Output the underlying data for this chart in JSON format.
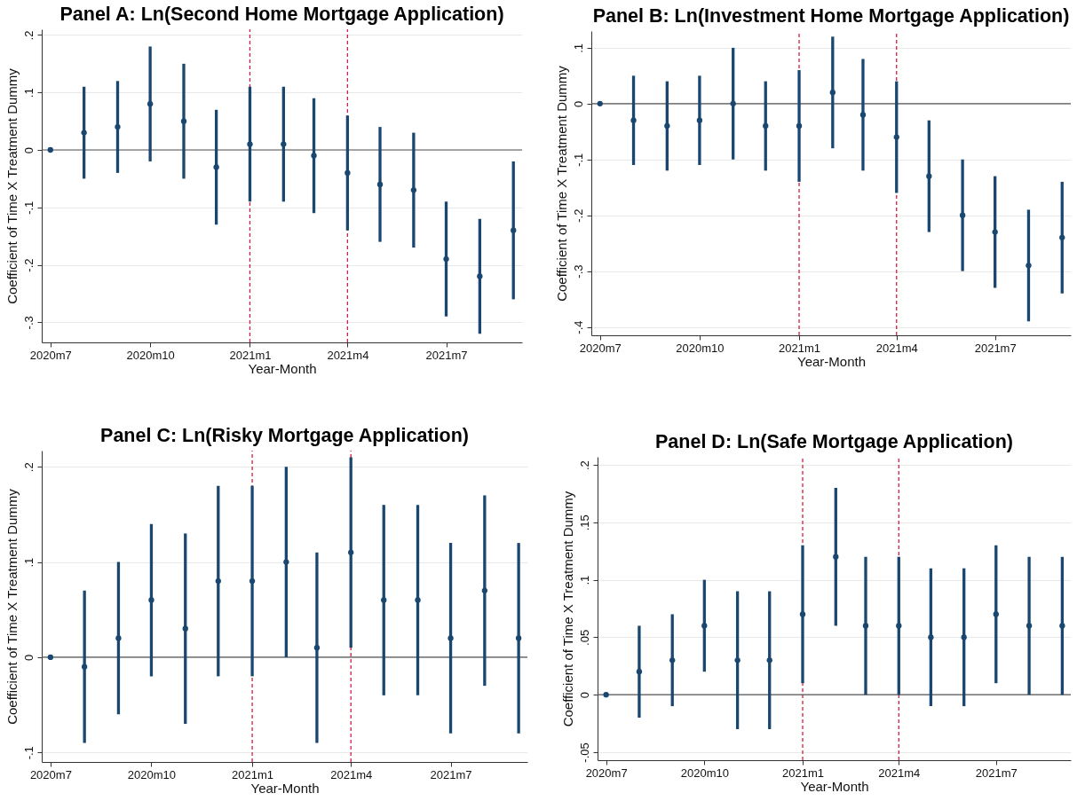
{
  "chart_data": [
    {
      "type": "scatter",
      "title": "Panel A: Ln(Second Home Mortgage Application)",
      "xlabel": "Year-Month",
      "ylabel": "Coefficient of Time X Treatment Dummy",
      "x": [
        "2020-07",
        "2020-08",
        "2020-09",
        "2020-10",
        "2020-11",
        "2020-12",
        "2021-01",
        "2021-02",
        "2021-03",
        "2021-04",
        "2021-05",
        "2021-06",
        "2021-07",
        "2021-08",
        "2021-09"
      ],
      "values": [
        0,
        0.03,
        0.04,
        0.08,
        0.05,
        -0.03,
        0.01,
        0.01,
        -0.01,
        -0.04,
        -0.06,
        -0.07,
        -0.19,
        -0.22,
        -0.14
      ],
      "errors": [
        null,
        0.08,
        0.08,
        0.1,
        0.1,
        0.1,
        0.1,
        0.1,
        0.1,
        0.1,
        0.1,
        0.1,
        0.1,
        0.1,
        0.12
      ],
      "color": "#1a476f",
      "marker": "circle",
      "grid": "y",
      "xlim": [
        "2020-06-23",
        "2021-09-09"
      ],
      "xticks": [
        {
          "value": "2020-07",
          "label": "2020m7"
        },
        {
          "value": "2020-10",
          "label": "2020m10"
        },
        {
          "value": "2021-01",
          "label": "2021m1"
        },
        {
          "value": "2021-04",
          "label": "2021m4"
        },
        {
          "value": "2021-07",
          "label": "2021m7"
        }
      ],
      "ylim": [
        -0.335,
        0.21
      ],
      "yticks": [
        {
          "value": -0.3,
          "label": "-.3"
        },
        {
          "value": -0.2,
          "label": "-.2"
        },
        {
          "value": -0.1,
          "label": "-.1"
        },
        {
          "value": 0,
          "label": "0"
        },
        {
          "value": 0.1,
          "label": ".1"
        },
        {
          "value": 0.2,
          "label": ".2"
        }
      ],
      "ref_lines": [
        {
          "axis": "y",
          "value": 0,
          "color": "#555555",
          "line_style": "solid"
        },
        {
          "axis": "x",
          "value": "2021-01",
          "color": "#d81b47",
          "line_style": "dashed"
        },
        {
          "axis": "x",
          "value": "2021-04",
          "color": "#d81b47",
          "line_style": "dashed"
        }
      ]
    },
    {
      "type": "scatter",
      "title": "Panel B: Ln(Investment Home Mortgage Application)",
      "xlabel": "Year-Month",
      "ylabel": "Coefficient of Time X Treatment Dummy",
      "x": [
        "2020-07",
        "2020-08",
        "2020-09",
        "2020-10",
        "2020-11",
        "2020-12",
        "2021-01",
        "2021-02",
        "2021-03",
        "2021-04",
        "2021-05",
        "2021-06",
        "2021-07",
        "2021-08",
        "2021-09"
      ],
      "values": [
        0,
        -0.03,
        -0.04,
        -0.03,
        0,
        -0.04,
        -0.04,
        0.02,
        -0.02,
        -0.06,
        -0.13,
        -0.2,
        -0.23,
        -0.29,
        -0.24
      ],
      "errors": [
        null,
        0.08,
        0.08,
        0.08,
        0.1,
        0.08,
        0.1,
        0.1,
        0.1,
        0.1,
        0.1,
        0.1,
        0.1,
        0.1,
        0.1
      ],
      "color": "#1a476f",
      "marker": "circle",
      "grid": "y",
      "xlim": [
        "2020-06-23",
        "2021-09-09"
      ],
      "xticks": [
        {
          "value": "2020-07",
          "label": "2020m7"
        },
        {
          "value": "2020-10",
          "label": "2020m10"
        },
        {
          "value": "2021-01",
          "label": "2021m1"
        },
        {
          "value": "2021-04",
          "label": "2021m4"
        },
        {
          "value": "2021-07",
          "label": "2021m7"
        }
      ],
      "ylim": [
        -0.415,
        0.13
      ],
      "yticks": [
        {
          "value": -0.4,
          "label": "-.4"
        },
        {
          "value": -0.3,
          "label": "-.3"
        },
        {
          "value": -0.2,
          "label": "-.2"
        },
        {
          "value": -0.1,
          "label": "-.1"
        },
        {
          "value": 0,
          "label": "0"
        },
        {
          "value": 0.1,
          "label": ".1"
        }
      ],
      "ref_lines": [
        {
          "axis": "y",
          "value": 0,
          "color": "#555555",
          "line_style": "solid"
        },
        {
          "axis": "x",
          "value": "2021-01",
          "color": "#d81b47",
          "line_style": "dashed"
        },
        {
          "axis": "x",
          "value": "2021-04",
          "color": "#d81b47",
          "line_style": "dashed"
        }
      ]
    },
    {
      "type": "scatter",
      "title": "Panel C: Ln(Risky Mortgage Application)",
      "xlabel": "Year-Month",
      "ylabel": "Coefficient of Time X Treatment Dummy",
      "x": [
        "2020-07",
        "2020-08",
        "2020-09",
        "2020-10",
        "2020-11",
        "2020-12",
        "2021-01",
        "2021-02",
        "2021-03",
        "2021-04",
        "2021-05",
        "2021-06",
        "2021-07",
        "2021-08",
        "2021-09"
      ],
      "values": [
        0,
        -0.01,
        0.02,
        0.06,
        0.03,
        0.08,
        0.08,
        0.1,
        0.01,
        0.11,
        0.06,
        0.06,
        0.02,
        0.07,
        0.02
      ],
      "errors": [
        null,
        0.08,
        0.08,
        0.08,
        0.1,
        0.1,
        0.1,
        0.1,
        0.1,
        0.1,
        0.1,
        0.1,
        0.1,
        0.1,
        0.1
      ],
      "color": "#1a476f",
      "marker": "circle",
      "grid": "y",
      "xlim": [
        "2020-06-23",
        "2021-09-09"
      ],
      "xticks": [
        {
          "value": "2020-07",
          "label": "2020m7"
        },
        {
          "value": "2020-10",
          "label": "2020m10"
        },
        {
          "value": "2021-01",
          "label": "2021m1"
        },
        {
          "value": "2021-04",
          "label": "2021m4"
        },
        {
          "value": "2021-07",
          "label": "2021m7"
        }
      ],
      "ylim": [
        -0.11,
        0.217
      ],
      "yticks": [
        {
          "value": -0.1,
          "label": "-.1"
        },
        {
          "value": 0,
          "label": "0"
        },
        {
          "value": 0.1,
          "label": ".1"
        },
        {
          "value": 0.2,
          "label": ".2"
        }
      ],
      "ref_lines": [
        {
          "axis": "y",
          "value": 0,
          "color": "#555555",
          "line_style": "solid"
        },
        {
          "axis": "x",
          "value": "2021-01",
          "color": "#d81b47",
          "line_style": "dashed"
        },
        {
          "axis": "x",
          "value": "2021-04",
          "color": "#d81b47",
          "line_style": "dashed"
        }
      ]
    },
    {
      "type": "scatter",
      "title": "Panel D: Ln(Safe Mortgage Application)",
      "xlabel": "Year-Month",
      "ylabel": "Coefficient of Time X Treatment Dummy",
      "x": [
        "2020-07",
        "2020-08",
        "2020-09",
        "2020-10",
        "2020-11",
        "2020-12",
        "2021-01",
        "2021-02",
        "2021-03",
        "2021-04",
        "2021-05",
        "2021-06",
        "2021-07",
        "2021-08",
        "2021-09"
      ],
      "values": [
        0,
        0.02,
        0.03,
        0.06,
        0.03,
        0.03,
        0.07,
        0.12,
        0.06,
        0.06,
        0.05,
        0.05,
        0.07,
        0.06,
        0.06
      ],
      "errors": [
        null,
        0.04,
        0.04,
        0.04,
        0.06,
        0.06,
        0.06,
        0.06,
        0.06,
        0.06,
        0.06,
        0.06,
        0.06,
        0.06,
        0.06
      ],
      "color": "#1a476f",
      "marker": "circle",
      "grid": "y",
      "xlim": [
        "2020-06-23",
        "2021-09-09"
      ],
      "xticks": [
        {
          "value": "2020-07",
          "label": "2020m7"
        },
        {
          "value": "2020-10",
          "label": "2020m10"
        },
        {
          "value": "2021-01",
          "label": "2021m1"
        },
        {
          "value": "2021-04",
          "label": "2021m4"
        },
        {
          "value": "2021-07",
          "label": "2021m7"
        }
      ],
      "ylim": [
        -0.057,
        0.207
      ],
      "yticks": [
        {
          "value": -0.05,
          "label": "-.05"
        },
        {
          "value": 0,
          "label": "0"
        },
        {
          "value": 0.05,
          "label": ".05"
        },
        {
          "value": 0.1,
          "label": ".1"
        },
        {
          "value": 0.15,
          "label": ".15"
        },
        {
          "value": 0.2,
          "label": ".2"
        }
      ],
      "ref_lines": [
        {
          "axis": "y",
          "value": 0,
          "color": "#555555",
          "line_style": "solid"
        },
        {
          "axis": "x",
          "value": "2021-01",
          "color": "#d81b47",
          "line_style": "dashed"
        },
        {
          "axis": "x",
          "value": "2021-04",
          "color": "#d81b47",
          "line_style": "dashed"
        }
      ]
    }
  ]
}
